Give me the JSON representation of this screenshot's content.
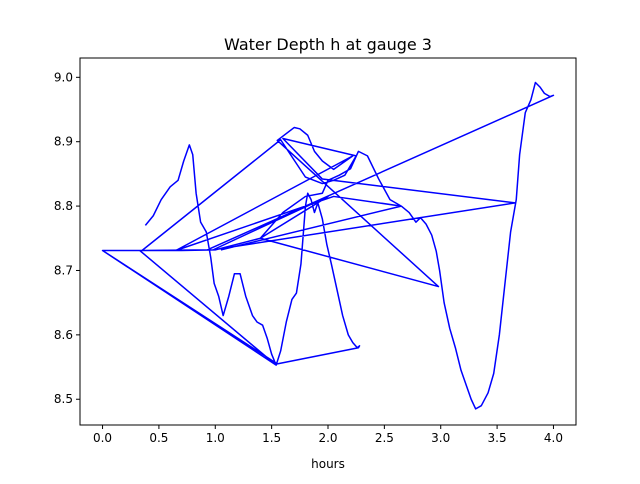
{
  "chart_data": {
    "type": "line",
    "title": "Water Depth h at gauge 3",
    "xlabel": "hours",
    "ylabel": "",
    "xlim": [
      -0.2,
      4.2
    ],
    "ylim": [
      8.46,
      9.03
    ],
    "xticks": [
      0.0,
      0.5,
      1.0,
      1.5,
      2.0,
      2.5,
      3.0,
      3.5,
      4.0
    ],
    "xtick_labels": [
      "0.0",
      "0.5",
      "1.0",
      "1.5",
      "2.0",
      "2.5",
      "3.0",
      "3.5",
      "4.0"
    ],
    "yticks": [
      8.5,
      8.6,
      8.7,
      8.8,
      8.9,
      9.0
    ],
    "ytick_labels": [
      "8.5",
      "8.6",
      "8.7",
      "8.8",
      "8.9",
      "9.0"
    ],
    "grid": false,
    "legend": "none",
    "series": [
      {
        "color": "#0000ff",
        "points": [
          [
            0.38,
            8.77
          ],
          [
            0.45,
            8.785
          ],
          [
            0.52,
            8.81
          ],
          [
            0.6,
            8.83
          ],
          [
            0.67,
            8.84
          ],
          [
            0.72,
            8.87
          ],
          [
            0.77,
            8.895
          ],
          [
            0.8,
            8.88
          ],
          [
            0.83,
            8.82
          ],
          [
            0.87,
            8.775
          ],
          [
            0.92,
            8.76
          ],
          [
            0.96,
            8.72
          ],
          [
            0.99,
            8.68
          ],
          [
            1.03,
            8.66
          ],
          [
            1.07,
            8.63
          ],
          [
            1.12,
            8.66
          ],
          [
            1.17,
            8.695
          ],
          [
            1.22,
            8.695
          ],
          [
            1.27,
            8.66
          ],
          [
            1.33,
            8.63
          ],
          [
            1.37,
            8.62
          ],
          [
            1.42,
            8.615
          ],
          [
            1.46,
            8.595
          ],
          [
            1.5,
            8.57
          ],
          [
            1.54,
            8.553
          ],
          [
            1.58,
            8.575
          ],
          [
            1.63,
            8.62
          ],
          [
            1.68,
            8.655
          ],
          [
            1.72,
            8.665
          ],
          [
            1.76,
            8.71
          ],
          [
            1.8,
            8.8
          ],
          [
            1.82,
            8.82
          ],
          [
            1.85,
            8.81
          ],
          [
            1.88,
            8.79
          ],
          [
            1.91,
            8.805
          ],
          [
            1.95,
            8.78
          ],
          [
            1.99,
            8.74
          ],
          [
            2.03,
            8.71
          ],
          [
            2.08,
            8.67
          ],
          [
            2.13,
            8.63
          ],
          [
            2.18,
            8.6
          ],
          [
            2.22,
            8.588
          ],
          [
            2.26,
            8.58
          ],
          [
            2.28,
            8.583
          ],
          [
            2.27,
            8.58
          ],
          [
            1.55,
            8.555
          ],
          [
            0.0,
            8.731
          ],
          [
            0.7,
            8.731
          ],
          [
            1.0,
            8.732
          ],
          [
            1.4,
            8.75
          ],
          [
            1.6,
            8.79
          ],
          [
            1.8,
            8.815
          ],
          [
            1.95,
            8.82
          ],
          [
            2.0,
            8.84
          ],
          [
            2.1,
            8.848
          ],
          [
            2.2,
            8.858
          ],
          [
            2.27,
            8.885
          ],
          [
            2.35,
            8.878
          ],
          [
            2.45,
            8.842
          ],
          [
            2.55,
            8.81
          ],
          [
            2.65,
            8.8
          ],
          [
            2.72,
            8.79
          ],
          [
            2.78,
            8.775
          ],
          [
            2.82,
            8.782
          ],
          [
            2.87,
            8.772
          ],
          [
            2.92,
            8.755
          ],
          [
            2.96,
            8.73
          ],
          [
            2.99,
            8.7
          ],
          [
            3.03,
            8.65
          ],
          [
            3.08,
            8.61
          ],
          [
            3.13,
            8.58
          ],
          [
            3.18,
            8.545
          ],
          [
            3.23,
            8.52
          ],
          [
            3.27,
            8.5
          ],
          [
            3.31,
            8.485
          ],
          [
            3.36,
            8.49
          ],
          [
            3.42,
            8.51
          ],
          [
            3.47,
            8.54
          ],
          [
            3.52,
            8.6
          ],
          [
            3.57,
            8.68
          ],
          [
            3.62,
            8.76
          ],
          [
            3.67,
            8.81
          ],
          [
            3.7,
            8.88
          ],
          [
            3.75,
            8.945
          ],
          [
            3.8,
            8.965
          ],
          [
            3.84,
            8.992
          ],
          [
            3.88,
            8.985
          ],
          [
            3.92,
            8.975
          ],
          [
            3.97,
            8.97
          ],
          [
            4.0,
            8.972
          ],
          [
            0.93,
            8.732
          ],
          [
            0.33,
            8.731
          ],
          [
            1.54,
            8.553
          ],
          [
            0.0,
            8.731
          ],
          [
            0.35,
            8.731
          ],
          [
            1.58,
            8.903
          ],
          [
            1.8,
            8.845
          ],
          [
            1.95,
            8.835
          ],
          [
            2.05,
            8.84
          ],
          [
            2.15,
            8.848
          ],
          [
            2.25,
            8.878
          ],
          [
            1.6,
            8.905
          ],
          [
            1.95,
            8.842
          ],
          [
            3.66,
            8.805
          ],
          [
            0.98,
            8.732
          ],
          [
            2.0,
            8.815
          ],
          [
            1.4,
            8.75
          ],
          [
            2.98,
            8.675
          ],
          [
            1.55,
            8.902
          ],
          [
            1.7,
            8.922
          ],
          [
            1.75,
            8.92
          ],
          [
            1.82,
            8.91
          ],
          [
            1.88,
            8.885
          ],
          [
            1.95,
            8.87
          ],
          [
            2.05,
            8.857
          ],
          [
            2.22,
            8.878
          ],
          [
            0.65,
            8.731
          ],
          [
            2.05,
            8.815
          ],
          [
            2.65,
            8.8
          ],
          [
            1.05,
            8.732
          ]
        ]
      }
    ]
  }
}
